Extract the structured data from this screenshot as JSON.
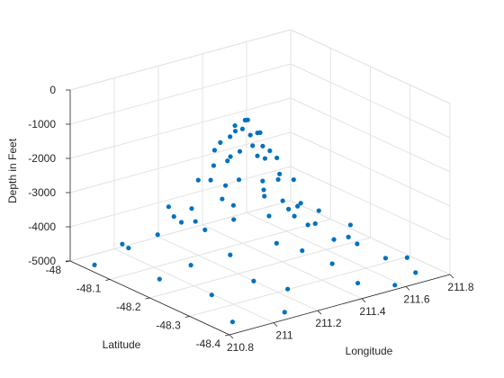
{
  "chart_data": {
    "type": "scatter3",
    "color": "#0072bd",
    "grid": true,
    "xlabel": "Longitude",
    "ylabel": "Latitude",
    "zlabel": "Depth in Feet",
    "xlim": [
      210.8,
      211.8
    ],
    "xticks": [
      210.8,
      211,
      211.2,
      211.4,
      211.6,
      211.8
    ],
    "ylim": [
      -48.4,
      -48
    ],
    "yticks": [
      -48.4,
      -48.3,
      -48.2,
      -48.1,
      -48
    ],
    "zlim": [
      -5000,
      0
    ],
    "zticks": [
      -5000,
      -4000,
      -3000,
      -2000,
      -1000,
      0
    ],
    "x": [
      211.25,
      211.22,
      211.28,
      211.24,
      211.27,
      211.2,
      211.3,
      211.23,
      211.26,
      211.31,
      211.19,
      211.29,
      211.21,
      211.25,
      211.33,
      211.17,
      211.34,
      211.22,
      211.28,
      211.15,
      211.36,
      211.19,
      211.31,
      211.13,
      211.38,
      211.24,
      211.27,
      211.11,
      211.4,
      211.16,
      211.34,
      211.2,
      211.09,
      211.42,
      211.3,
      211.08,
      211.44,
      211.14,
      211.36,
      211.05,
      211.47,
      211.22,
      211.12,
      211.4,
      211.02,
      211.5,
      210.98,
      211.52,
      211.32,
      211.0,
      211.18,
      211.55,
      210.95,
      211.45,
      211.1,
      211.58,
      210.92,
      211.6,
      211.25,
      210.9,
      211.4,
      211.65,
      210.88,
      211.0,
      211.7,
      211.75,
      210.85,
      211.05,
      211.55,
      211.35,
      211.8,
      210.82,
      211.68
    ],
    "y": [
      -48.19,
      -48.2,
      -48.18,
      -48.17,
      -48.21,
      -48.18,
      -48.2,
      -48.22,
      -48.16,
      -48.17,
      -48.21,
      -48.23,
      -48.15,
      -48.24,
      -48.19,
      -48.19,
      -48.22,
      -48.13,
      -48.26,
      -48.23,
      -48.16,
      -48.27,
      -48.12,
      -48.17,
      -48.24,
      -48.29,
      -48.1,
      -48.21,
      -48.19,
      -48.3,
      -48.28,
      -48.1,
      -48.25,
      -48.14,
      -48.32,
      -48.15,
      -48.27,
      -48.33,
      -48.08,
      -48.2,
      -48.2,
      -48.35,
      -48.07,
      -48.33,
      -48.28,
      -48.1,
      -48.12,
      -48.3,
      -48.37,
      -48.35,
      -48.05,
      -48.2,
      -48.22,
      -48.05,
      -48.38,
      -48.36,
      -48.08,
      -48.12,
      -48.03,
      -48.3,
      -48.39,
      -48.25,
      -48.18,
      -48.02,
      -48.05,
      -48.32,
      -48.38,
      -48.4,
      -48.4,
      -48.01,
      -48.15,
      -48.05,
      -48.38
    ],
    "z": [
      -650,
      -800,
      -750,
      -900,
      -950,
      -1100,
      -1050,
      -1200,
      -1150,
      -1300,
      -1350,
      -1400,
      -1450,
      -1500,
      -1550,
      -1700,
      -1750,
      -1800,
      -1900,
      -2000,
      -2050,
      -2150,
      -2200,
      -2300,
      -2350,
      -2450,
      -2500,
      -2600,
      -2650,
      -2700,
      -2750,
      -2800,
      -2950,
      -3000,
      -3100,
      -3150,
      -3200,
      -3300,
      -3350,
      -3450,
      -3500,
      -3550,
      -3600,
      -3650,
      -3700,
      -3800,
      -3900,
      -3950,
      -4000,
      -4050,
      -4100,
      -4150,
      -4200,
      -4250,
      -4300,
      -4350,
      -4400,
      -4450,
      -4500,
      -4550,
      -4600,
      -4650,
      -4700,
      -4750,
      -4800,
      -4850,
      -4820,
      -4780,
      -4870,
      -4760,
      -4900,
      -4880,
      -4840
    ]
  }
}
